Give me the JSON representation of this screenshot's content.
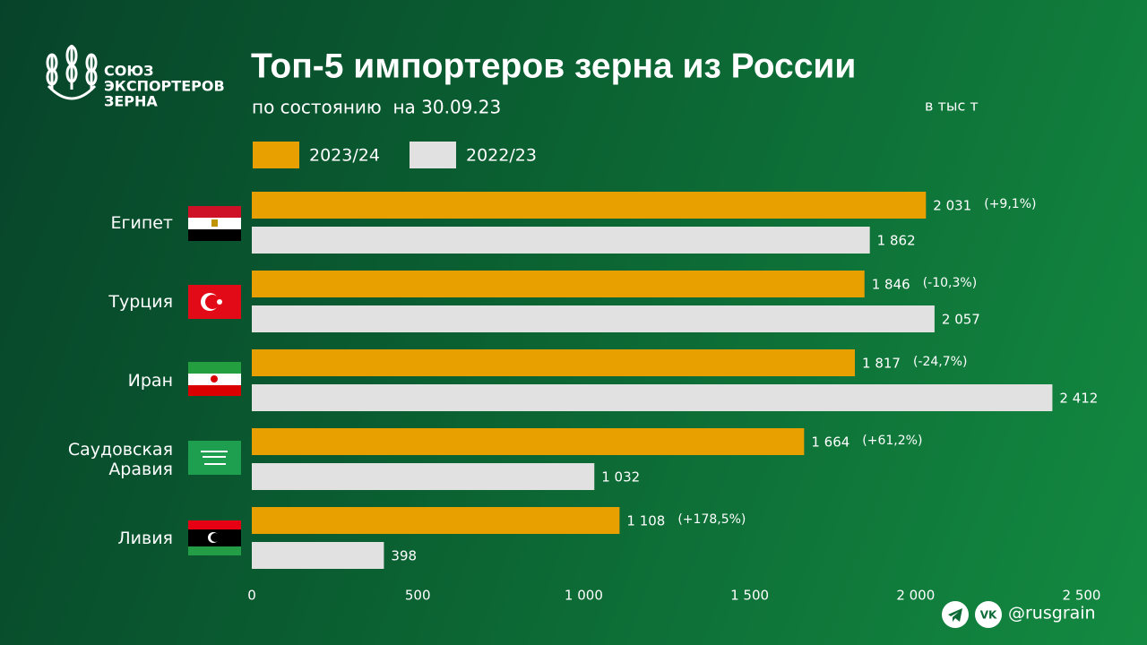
{
  "logo": [
    "СОЮЗ",
    "ЭКСПОРТЕРОВ",
    "ЗЕРНА"
  ],
  "chart_data": {
    "type": "bar",
    "orientation": "horizontal",
    "title": "Топ-5 импортеров зерна из России",
    "subtitle": "по состоянию  на 30.09.23",
    "unit": "в тыс т",
    "categories": [
      "Египет",
      "Турция",
      "Иран",
      "Саудовская Аравия",
      "Ливия"
    ],
    "series": [
      {
        "name": "2023/24",
        "color": "#e89f00",
        "values": [
          2031,
          1846,
          1817,
          1664,
          1108
        ],
        "value_labels": [
          "2 031",
          "1 846",
          "1 817",
          "1 664",
          "1 108"
        ]
      },
      {
        "name": "2022/23",
        "color": "#e1e1e1",
        "values": [
          1862,
          2057,
          2412,
          1032,
          398
        ],
        "value_labels": [
          "1 862",
          "2 057",
          "2 412",
          "1 032",
          "398"
        ]
      }
    ],
    "annotations": [
      "(+9,1%)",
      "(-10,3%)",
      "(-24,7%)",
      "(+61,2%)",
      "(+178,5%)"
    ],
    "xlim": [
      0,
      2500
    ],
    "xticks": [
      0,
      500,
      {
        "value": 1000,
        "label": "1 000"
      },
      {
        "value": 1500,
        "label": "1 500"
      },
      {
        "value": 2000,
        "label": "2 000"
      },
      {
        "value": 2500,
        "label": "2 500"
      }
    ],
    "grid": false
  },
  "footer": "@rusgrain"
}
